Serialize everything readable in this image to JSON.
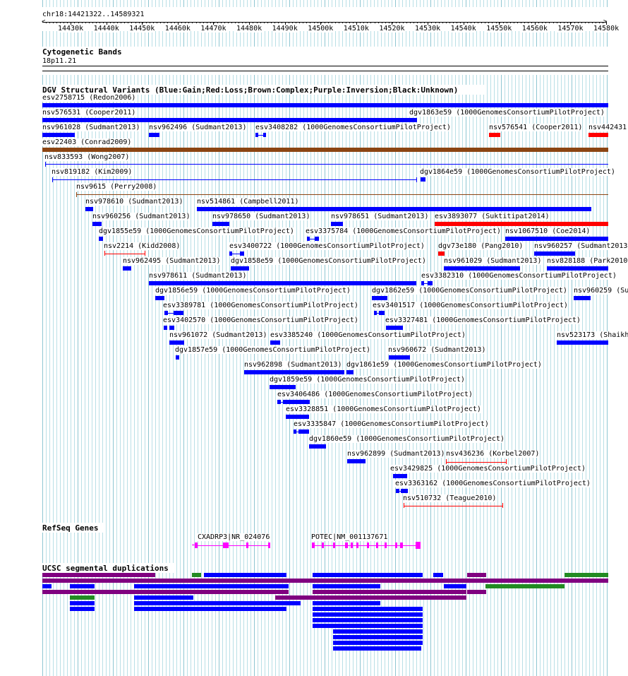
{
  "ruler": {
    "location": "chr18:14421322..14589321",
    "ticks": [
      "14430k",
      "14440k",
      "14450k",
      "14460k",
      "14470k",
      "14480k",
      "14490k",
      "14500k",
      "14510k",
      "14520k",
      "14530k",
      "14540k",
      "14550k",
      "14560k",
      "14570k",
      "14580k"
    ]
  },
  "cyto": {
    "title": "Cytogenetic Bands",
    "band": "18p11.21"
  },
  "dgv": {
    "title": "DGV Structural Variants (Blue:Gain;Red:Loss;Brown:Complex;Purple:Inversion;Black:Unknown)",
    "labels": [
      "esv2758715 (Redon2006)",
      "nsv576531 (Cooper2011)",
      "dgv1863e59 (1000GenomesConsortiumPilotProject)",
      "nsv961028 (Sudmant2013)",
      "nsv962496 (Sudmant2013)",
      "esv3408282 (1000GenomesConsortiumPilotProject)",
      "nsv576541 (Cooper2011)",
      "nsv442431",
      "esv22403 (Conrad2009)",
      "nsv833593 (Wong2007)",
      "nsv819182 (Kim2009)",
      "dgv1864e59 (1000GenomesConsortiumPilotProject)",
      "nsv9615 (Perry2008)",
      "nsv978610 (Sudmant2013)",
      "nsv514861 (Campbell2011)",
      "nsv960256 (Sudmant2013)",
      "nsv978650 (Sudmant2013)",
      "nsv978651 (Sudmant2013)",
      "esv3893077 (Suktitipat2014)",
      "dgv1855e59 (1000GenomesConsortiumPilotProject)",
      "esv3375784 (1000GenomesConsortiumPilotProject)",
      "nsv1067510 (Coe2014)",
      "nsv2214 (Kidd2008)",
      "esv3400722 (1000GenomesConsortiumPilotProject)",
      "dgv73e180 (Pang2010)",
      "nsv960257 (Sudmant2013",
      "nsv962495 (Sudmant2013)",
      "dgv1858e59 (1000GenomesConsortiumPilotProject)",
      "nsv961029 (Sudmant2013)",
      "nsv828188 (Park2010",
      "nsv978611 (Sudmant2013)",
      "esv3382310 (1000GenomesConsortiumPilotProject)",
      "dgv1856e59 (1000GenomesConsortiumPilotProject)",
      "dgv1862e59 (1000GenomesConsortiumPilotProject)",
      "nsv960259 (Su",
      "esv3389781 (1000GenomesConsortiumPilotProject)",
      "esv3401517 (1000GenomesConsortiumPilotProject)",
      "esv3402570 (1000GenomesConsortiumPilotProject)",
      "esv3327481 (1000GenomesConsortiumPilotProject)",
      "nsv961072 (Sudmant2013)",
      "esv3385240 (1000GenomesConsortiumPilotProject)",
      "nsv523173 (Shaikh",
      "dgv1857e59 (1000GenomesConsortiumPilotProject)",
      "nsv960672 (Sudmant2013)",
      "nsv962898 (Sudmant2013)",
      "dgv1861e59 (1000GenomesConsortiumPilotProject)",
      "dgv1859e59 (1000GenomesConsortiumPilotProject)",
      "esv3406486 (1000GenomesConsortiumPilotProject)",
      "esv3328851 (1000GenomesConsortiumPilotProject)",
      "esv3335847 (1000GenomesConsortiumPilotProject)",
      "dgv1860e59 (1000GenomesConsortiumPilotProject)",
      "nsv962899 (Sudmant2013)",
      "nsv436236 (Korbel2007)",
      "esv3429825 (1000GenomesConsortiumPilotProject)",
      "esv3363162 (1000GenomesConsortiumPilotProject)",
      "nsv510732 (Teague2010)"
    ]
  },
  "refseq": {
    "title": "RefSeq Genes",
    "genes": [
      "CXADRP3|NR_024076",
      "POTEC|NM_001137671"
    ]
  },
  "segdup": {
    "title": "UCSC segmental duplications"
  },
  "colors": {
    "gain": "#0000ff",
    "loss": "#ff0000",
    "complex": "#8b4513",
    "inversion": "#800080",
    "gene": "#ff00ff",
    "segdup_purple": "#800080",
    "segdup_green": "#228b22",
    "segdup_blue": "#0000ff"
  }
}
